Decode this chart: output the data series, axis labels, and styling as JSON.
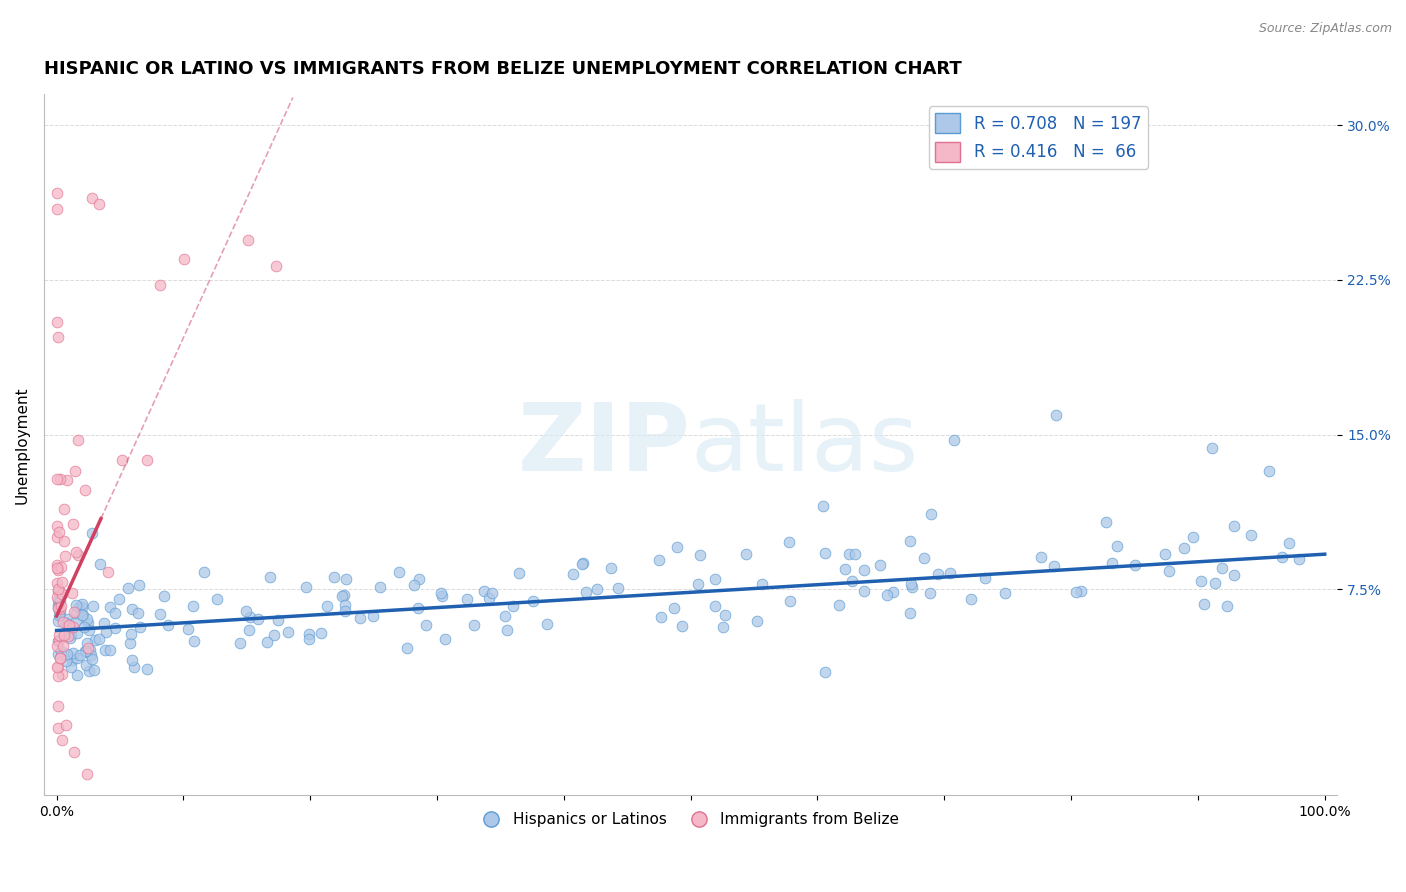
{
  "title": "HISPANIC OR LATINO VS IMMIGRANTS FROM BELIZE UNEMPLOYMENT CORRELATION CHART",
  "source": "Source: ZipAtlas.com",
  "xlabel": "",
  "ylabel": "Unemployment",
  "xlim": [
    -0.01,
    1.01
  ],
  "ylim": [
    -0.025,
    0.315
  ],
  "yticks": [
    0.075,
    0.15,
    0.225,
    0.3
  ],
  "ytick_labels": [
    "7.5%",
    "15.0%",
    "22.5%",
    "30.0%"
  ],
  "xticks": [
    0.0,
    0.1,
    0.2,
    0.3,
    0.4,
    0.5,
    0.6,
    0.7,
    0.8,
    0.9,
    1.0
  ],
  "xtick_labels": [
    "0.0%",
    "",
    "",
    "",
    "",
    "",
    "",
    "",
    "",
    "",
    "100.0%"
  ],
  "blue_color": "#adc8e8",
  "blue_edge_color": "#5b9bd5",
  "pink_color": "#f4b8c8",
  "pink_edge_color": "#e07090",
  "trend_blue": "#2060b0",
  "trend_pink": "#d04060",
  "R_blue": 0.708,
  "N_blue": 197,
  "R_pink": 0.416,
  "N_pink": 66,
  "legend_blue_label": "Hispanics or Latinos",
  "legend_pink_label": "Immigrants from Belize",
  "watermark_zip": "ZIP",
  "watermark_atlas": "atlas",
  "background_color": "#ffffff",
  "grid_color": "#cccccc",
  "title_fontsize": 13,
  "axis_label_fontsize": 11,
  "tick_fontsize": 10,
  "marker_size": 60,
  "blue_trend_start_y": 0.055,
  "blue_trend_end_y": 0.092,
  "pink_trend_intercept": 0.062,
  "pink_trend_slope": 1.35
}
